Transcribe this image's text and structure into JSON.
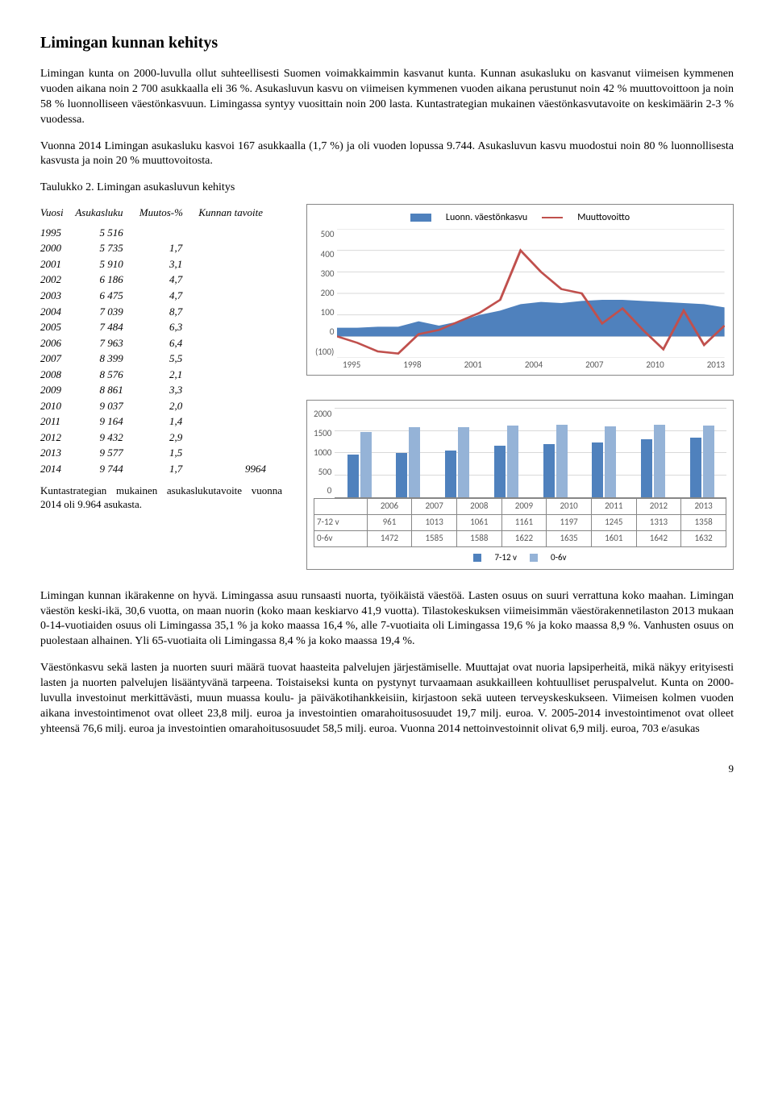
{
  "title": "Limingan kunnan kehitys",
  "para1": "Limingan kunta on 2000-luvulla ollut suhteellisesti Suomen voimakkaimmin kasvanut kunta. Kunnan asukasluku on kasvanut viimeisen kymmenen vuoden aikana noin 2 700 asukkaalla eli 36 %. Asukasluvun kasvu on viimeisen kymmenen vuoden aikana perustunut noin 42 % muuttovoittoon ja noin 58 % luonnolliseen väestönkasvuun. Limingassa syntyy vuosittain noin 200 lasta. Kuntastrategian mukainen väestönkasvutavoite on keskimäärin 2-3 % vuodessa.",
  "para2": "Vuonna 2014 Limingan asukasluku kasvoi 167 asukkaalla (1,7 %) ja oli vuoden lopussa 9.744.  Asukasluvun kasvu muodostui noin 80 % luonnollisesta kasvusta ja noin 20 % muuttovoitosta.",
  "tableTitle": "Taulukko 2. Limingan asukasluvun kehitys",
  "tableHeaders": [
    "Vuosi",
    "Asukasluku",
    "Muutos-%",
    "Kunnan tavoite"
  ],
  "tableRows": [
    [
      "1995",
      "5 516",
      "",
      ""
    ],
    [
      "2000",
      "5 735",
      "1,7",
      ""
    ],
    [
      "2001",
      "5 910",
      "3,1",
      ""
    ],
    [
      "2002",
      "6 186",
      "4,7",
      ""
    ],
    [
      "2003",
      "6 475",
      "4,7",
      ""
    ],
    [
      "2004",
      "7 039",
      "8,7",
      ""
    ],
    [
      "2005",
      "7 484",
      "6,3",
      ""
    ],
    [
      "2006",
      "7 963",
      "6,4",
      ""
    ],
    [
      "2007",
      "8 399",
      "5,5",
      ""
    ],
    [
      "2008",
      "8 576",
      "2,1",
      ""
    ],
    [
      "2009",
      "8 861",
      "3,3",
      ""
    ],
    [
      "2010",
      "9 037",
      "2,0",
      ""
    ],
    [
      "2011",
      "9 164",
      "1,4",
      ""
    ],
    [
      "2012",
      "9 432",
      "2,9",
      ""
    ],
    [
      "2013",
      "9 577",
      "1,5",
      ""
    ],
    [
      "2014",
      "9 744",
      "1,7",
      "9964"
    ]
  ],
  "tableFootnote": "Kuntastrategian mukainen asukaslukutavoite vuonna 2014 oli 9.964 asukasta.",
  "chart1": {
    "legend": [
      "Luonn. väestönkasvu",
      "Muuttovoitto"
    ],
    "yticks": [
      "500",
      "400",
      "300",
      "200",
      "100",
      "0",
      "(100)"
    ],
    "xticks": [
      "1995",
      "1998",
      "2001",
      "2004",
      "2007",
      "2010",
      "2013"
    ],
    "colors": {
      "area": "#4f81bd",
      "line": "#c0504d",
      "grid": "#d9d9d9"
    },
    "ymin": -100,
    "ymax": 500,
    "area_values": [
      40,
      40,
      45,
      45,
      70,
      50,
      70,
      100,
      120,
      150,
      160,
      155,
      165,
      170,
      170,
      165,
      160,
      155,
      150,
      135
    ],
    "line_values": [
      0,
      -30,
      -70,
      -80,
      10,
      30,
      70,
      110,
      170,
      400,
      300,
      220,
      200,
      60,
      130,
      30,
      -60,
      120,
      -40,
      50
    ]
  },
  "chart2": {
    "yticks": [
      "2000",
      "1500",
      "1000",
      "500",
      "0"
    ],
    "years": [
      "2006",
      "2007",
      "2008",
      "2009",
      "2010",
      "2011",
      "2012",
      "2013"
    ],
    "series": [
      {
        "name": "7-12 v",
        "color": "#4f81bd",
        "values": [
          961,
          1013,
          1061,
          1161,
          1197,
          1245,
          1313,
          1358
        ]
      },
      {
        "name": "0-6v",
        "color": "#95b3d7",
        "values": [
          1472,
          1585,
          1588,
          1622,
          1635,
          1601,
          1642,
          1632
        ]
      }
    ],
    "ymax": 2000,
    "legendMarkers": [
      "7-12 v",
      "0-6v"
    ]
  },
  "para3": "Limingan kunnan ikärakenne on hyvä. Limingassa asuu runsaasti nuorta, työikäistä väestöä.  Lasten osuus on suuri verrattuna koko maahan.  Limingan väestön keski-ikä, 30,6 vuotta, on maan nuorin (koko maan keskiarvo 41,9 vuotta). Tilastokeskuksen viimeisimmän väestörakennetilaston 2013 mukaan 0-14-vuotiaiden osuus oli Limingassa 35,1 % ja koko maassa 16,4 %, alle 7-vuotiaita oli Limingassa 19,6 % ja koko maassa 8,9 %.  Vanhusten osuus on puolestaan alhainen.  Yli 65-vuotiaita oli Limingassa 8,4 % ja koko maassa 19,4 %.",
  "para4": "Väestönkasvu sekä lasten ja nuorten suuri määrä tuovat haasteita palvelujen järjestämiselle.  Muuttajat ovat nuoria lapsiperheitä, mikä näkyy erityisesti lasten ja nuorten palvelujen lisääntyvänä tarpeena.  Toistaiseksi kunta on pystynyt turvaamaan asukkailleen kohtuulliset peruspalvelut.  Kunta on 2000-luvulla investoinut merkittävästi, muun muassa koulu- ja päiväkotihankkeisiin, kirjastoon sekä uuteen terveyskeskukseen. Viimeisen kolmen vuoden aikana investointimenot ovat olleet 23,8 milj. euroa ja investointien omarahoitusosuudet 19,7 milj. euroa.  V. 2005-2014 investointimenot  ovat olleet yhteensä 76,6 milj. euroa ja investointien omarahoitusosuudet 58,5 milj. euroa.  Vuonna 2014 nettoinvestoinnit olivat 6,9 milj. euroa, 703 e/asukas",
  "pageNumber": "9"
}
